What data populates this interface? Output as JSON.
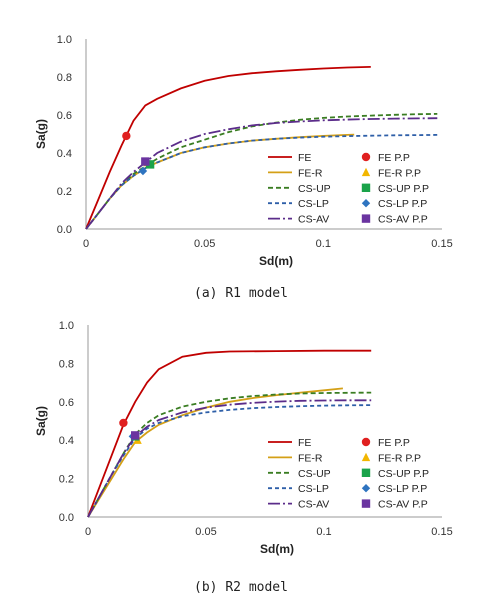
{
  "chart_data": [
    {
      "type": "line",
      "caption": "(a) R1 model",
      "xlabel": "Sd(m)",
      "ylabel": "Sa(g)",
      "xlim": [
        0,
        0.15
      ],
      "ylim": [
        0,
        1.0
      ],
      "xticks": [
        "0",
        "0.05",
        "0.1",
        "0.15"
      ],
      "yticks": [
        "0.0",
        "0.2",
        "0.4",
        "0.6",
        "0.8",
        "1.0"
      ],
      "grid": false,
      "legend_position": "bottom-right",
      "series": [
        {
          "name": "FE",
          "color": "#c00000",
          "dash": "solid",
          "x": [
            0,
            0.005,
            0.01,
            0.015,
            0.02,
            0.025,
            0.03,
            0.04,
            0.05,
            0.06,
            0.07,
            0.08,
            0.09,
            0.1,
            0.11,
            0.12
          ],
          "y": [
            0,
            0.15,
            0.3,
            0.44,
            0.57,
            0.65,
            0.685,
            0.74,
            0.78,
            0.805,
            0.82,
            0.83,
            0.838,
            0.845,
            0.85,
            0.853
          ]
        },
        {
          "name": "FE-R",
          "color": "#d4a017",
          "dash": "solid",
          "x": [
            0,
            0.005,
            0.01,
            0.015,
            0.02,
            0.025,
            0.03,
            0.04,
            0.05,
            0.06,
            0.07,
            0.08,
            0.09,
            0.1,
            0.11,
            0.113
          ],
          "y": [
            0,
            0.08,
            0.16,
            0.23,
            0.28,
            0.32,
            0.35,
            0.4,
            0.43,
            0.45,
            0.465,
            0.475,
            0.483,
            0.49,
            0.495,
            0.497
          ]
        },
        {
          "name": "CS-UP",
          "color": "#3a7d22",
          "dash": "5,3",
          "x": [
            0,
            0.005,
            0.01,
            0.015,
            0.02,
            0.025,
            0.03,
            0.04,
            0.05,
            0.06,
            0.07,
            0.08,
            0.09,
            0.1,
            0.11,
            0.12,
            0.13,
            0.14,
            0.148
          ],
          "y": [
            0,
            0.08,
            0.16,
            0.23,
            0.29,
            0.33,
            0.37,
            0.43,
            0.47,
            0.51,
            0.54,
            0.56,
            0.575,
            0.585,
            0.592,
            0.597,
            0.601,
            0.604,
            0.606
          ]
        },
        {
          "name": "CS-LP",
          "color": "#2e5fa8",
          "dash": "4,3",
          "x": [
            0,
            0.005,
            0.01,
            0.015,
            0.02,
            0.025,
            0.03,
            0.04,
            0.05,
            0.06,
            0.07,
            0.08,
            0.09,
            0.1,
            0.11,
            0.12,
            0.13,
            0.14,
            0.148
          ],
          "y": [
            0,
            0.08,
            0.16,
            0.23,
            0.28,
            0.32,
            0.35,
            0.4,
            0.43,
            0.45,
            0.465,
            0.475,
            0.481,
            0.486,
            0.489,
            0.491,
            0.493,
            0.494,
            0.495
          ]
        },
        {
          "name": "CS-AV",
          "color": "#5b2c8a",
          "dash": "12,3,2,3",
          "x": [
            0,
            0.005,
            0.01,
            0.015,
            0.02,
            0.025,
            0.03,
            0.04,
            0.05,
            0.06,
            0.07,
            0.08,
            0.09,
            0.1,
            0.11,
            0.12,
            0.13,
            0.14,
            0.148
          ],
          "y": [
            0,
            0.08,
            0.16,
            0.24,
            0.3,
            0.35,
            0.4,
            0.46,
            0.5,
            0.525,
            0.545,
            0.558,
            0.566,
            0.572,
            0.576,
            0.579,
            0.581,
            0.582,
            0.583
          ]
        }
      ],
      "performance_points": [
        {
          "name": "FE P.P",
          "color": "#e02020",
          "marker": "circle",
          "x": 0.017,
          "y": 0.49
        },
        {
          "name": "FE-R P.P",
          "color": "#f2b600",
          "marker": "triangle",
          "x": 0.026,
          "y": 0.35
        },
        {
          "name": "CS-UP P.P",
          "color": "#1aa34a",
          "marker": "square",
          "x": 0.027,
          "y": 0.34
        },
        {
          "name": "CS-LP P.P",
          "color": "#2e74c0",
          "marker": "diamond",
          "x": 0.024,
          "y": 0.305
        },
        {
          "name": "CS-AV P.P",
          "color": "#6a34a0",
          "marker": "square",
          "x": 0.025,
          "y": 0.355
        }
      ]
    },
    {
      "type": "line",
      "caption": "(b) R2 model",
      "xlabel": "Sd(m)",
      "ylabel": "Sa(g)",
      "xlim": [
        0,
        0.15
      ],
      "ylim": [
        0,
        1.0
      ],
      "xticks": [
        "0",
        "0.05",
        "0.1",
        "0.15"
      ],
      "yticks": [
        "0.0",
        "0.2",
        "0.4",
        "0.6",
        "0.8",
        "1.0"
      ],
      "grid": false,
      "legend_position": "bottom-right",
      "series": [
        {
          "name": "FE",
          "color": "#c00000",
          "dash": "solid",
          "x": [
            0,
            0.005,
            0.01,
            0.015,
            0.02,
            0.025,
            0.03,
            0.04,
            0.05,
            0.06,
            0.08,
            0.1,
            0.12
          ],
          "y": [
            0,
            0.16,
            0.32,
            0.48,
            0.6,
            0.7,
            0.77,
            0.835,
            0.855,
            0.862,
            0.864,
            0.866,
            0.866
          ]
        },
        {
          "name": "FE-R",
          "color": "#d4a017",
          "dash": "solid",
          "x": [
            0,
            0.005,
            0.01,
            0.015,
            0.02,
            0.025,
            0.03,
            0.04,
            0.05,
            0.06,
            0.07,
            0.08,
            0.09,
            0.1,
            0.108
          ],
          "y": [
            0,
            0.1,
            0.2,
            0.3,
            0.39,
            0.44,
            0.48,
            0.53,
            0.57,
            0.6,
            0.62,
            0.635,
            0.648,
            0.66,
            0.67
          ]
        },
        {
          "name": "CS-UP",
          "color": "#3a7d22",
          "dash": "5,3",
          "x": [
            0,
            0.005,
            0.01,
            0.015,
            0.02,
            0.025,
            0.03,
            0.04,
            0.05,
            0.06,
            0.07,
            0.08,
            0.09,
            0.1,
            0.11,
            0.12
          ],
          "y": [
            0,
            0.11,
            0.22,
            0.33,
            0.43,
            0.49,
            0.53,
            0.575,
            0.6,
            0.618,
            0.63,
            0.638,
            0.643,
            0.646,
            0.647,
            0.648
          ]
        },
        {
          "name": "CS-LP",
          "color": "#2e5fa8",
          "dash": "4,3",
          "x": [
            0,
            0.005,
            0.01,
            0.015,
            0.02,
            0.025,
            0.03,
            0.04,
            0.05,
            0.06,
            0.07,
            0.08,
            0.09,
            0.1,
            0.11,
            0.12
          ],
          "y": [
            0,
            0.11,
            0.22,
            0.32,
            0.41,
            0.46,
            0.49,
            0.525,
            0.545,
            0.558,
            0.567,
            0.573,
            0.577,
            0.58,
            0.582,
            0.583
          ]
        },
        {
          "name": "CS-AV",
          "color": "#5b2c8a",
          "dash": "12,3,2,3",
          "x": [
            0,
            0.005,
            0.01,
            0.015,
            0.02,
            0.025,
            0.03,
            0.04,
            0.05,
            0.06,
            0.07,
            0.08,
            0.09,
            0.1,
            0.11,
            0.12
          ],
          "y": [
            0,
            0.11,
            0.22,
            0.33,
            0.42,
            0.47,
            0.505,
            0.545,
            0.57,
            0.585,
            0.595,
            0.601,
            0.605,
            0.607,
            0.608,
            0.608
          ]
        }
      ],
      "performance_points": [
        {
          "name": "FE P.P",
          "color": "#e02020",
          "marker": "circle",
          "x": 0.015,
          "y": 0.49
        },
        {
          "name": "FE-R P.P",
          "color": "#f2b600",
          "marker": "triangle",
          "x": 0.021,
          "y": 0.4
        },
        {
          "name": "CS-UP P.P",
          "color": "#1aa34a",
          "marker": "square",
          "x": 0.02,
          "y": 0.42
        },
        {
          "name": "CS-LP P.P",
          "color": "#2e74c0",
          "marker": "diamond",
          "x": 0.019,
          "y": 0.42
        },
        {
          "name": "CS-AV P.P",
          "color": "#6a34a0",
          "marker": "square",
          "x": 0.02,
          "y": 0.425
        }
      ]
    }
  ]
}
